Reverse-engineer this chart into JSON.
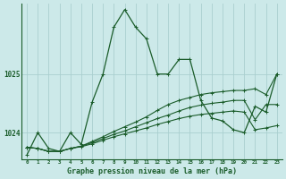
{
  "xlabel": "Graphe pression niveau de la mer (hPa)",
  "bg_color": "#cce9e9",
  "grid_color": "#aacfcf",
  "line_color": "#1a5c2a",
  "x_ticks": [
    0,
    1,
    2,
    3,
    4,
    5,
    6,
    7,
    8,
    9,
    10,
    11,
    12,
    13,
    14,
    15,
    16,
    17,
    18,
    19,
    20,
    21,
    22,
    23
  ],
  "ylim": [
    1023.55,
    1026.2
  ],
  "yticks": [
    1024,
    1025
  ],
  "series": [
    [
      1023.62,
      1024.0,
      1023.73,
      1023.68,
      1024.0,
      1023.8,
      1024.52,
      1025.0,
      1025.8,
      1026.1,
      1025.8,
      1025.6,
      1025.0,
      1025.0,
      1025.25,
      1025.25,
      1024.55,
      1024.25,
      1024.2,
      1024.05,
      1024.0,
      1024.45,
      1024.35,
      1025.0
    ],
    [
      1023.75,
      1023.73,
      1023.68,
      1023.68,
      1023.73,
      1023.77,
      1023.85,
      1023.93,
      1024.02,
      1024.1,
      1024.18,
      1024.27,
      1024.38,
      1024.48,
      1024.55,
      1024.6,
      1024.65,
      1024.68,
      1024.7,
      1024.72,
      1024.72,
      1024.75,
      1024.65,
      1025.0
    ],
    [
      1023.75,
      1023.73,
      1023.68,
      1023.68,
      1023.73,
      1023.77,
      1023.83,
      1023.9,
      1023.97,
      1024.03,
      1024.1,
      1024.17,
      1024.24,
      1024.3,
      1024.37,
      1024.43,
      1024.47,
      1024.5,
      1024.52,
      1024.55,
      1024.55,
      1024.22,
      1024.48,
      1024.48
    ],
    [
      1023.75,
      1023.73,
      1023.68,
      1023.68,
      1023.73,
      1023.76,
      1023.81,
      1023.87,
      1023.93,
      1023.98,
      1024.03,
      1024.08,
      1024.14,
      1024.19,
      1024.24,
      1024.28,
      1024.31,
      1024.33,
      1024.35,
      1024.37,
      1024.35,
      1024.05,
      1024.08,
      1024.12
    ]
  ]
}
